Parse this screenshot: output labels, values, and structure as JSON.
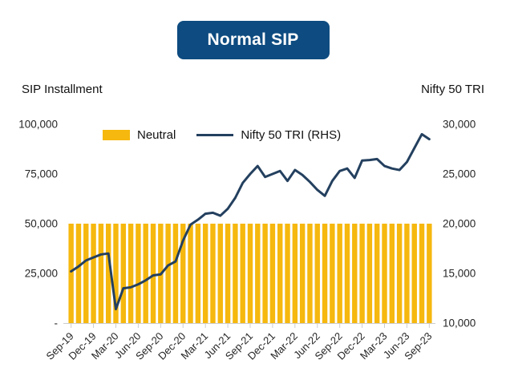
{
  "title": "Normal SIP",
  "axis_titles": {
    "left": "SIP Installment",
    "right": "Nifty 50 TRI"
  },
  "legend": [
    {
      "label": "Neutral",
      "type": "bar",
      "color": "#f6b80e"
    },
    {
      "label": "Nifty 50 TRI (RHS)",
      "type": "line",
      "color": "#24405f"
    }
  ],
  "colors": {
    "badge_bg": "#0d4b80",
    "badge_text": "#ffffff",
    "bar": "#f6b80e",
    "line": "#24405f",
    "axis_gray": "#cccccc",
    "label_text": "#262626"
  },
  "chart_data": {
    "type": "bar+line",
    "title": "Normal SIP",
    "x": [
      "Sep-19",
      "Oct-19",
      "Nov-19",
      "Dec-19",
      "Jan-20",
      "Feb-20",
      "Mar-20",
      "Apr-20",
      "May-20",
      "Jun-20",
      "Jul-20",
      "Aug-20",
      "Sep-20",
      "Oct-20",
      "Nov-20",
      "Dec-20",
      "Jan-21",
      "Feb-21",
      "Mar-21",
      "Apr-21",
      "May-21",
      "Jun-21",
      "Jul-21",
      "Aug-21",
      "Sep-21",
      "Oct-21",
      "Nov-21",
      "Dec-21",
      "Jan-22",
      "Feb-22",
      "Mar-22",
      "Apr-22",
      "May-22",
      "Jun-22",
      "Jul-22",
      "Aug-22",
      "Sep-22",
      "Oct-22",
      "Nov-22",
      "Dec-22",
      "Jan-23",
      "Feb-23",
      "Mar-23",
      "Apr-23",
      "May-23",
      "Jun-23",
      "Jul-23",
      "Aug-23",
      "Sep-23"
    ],
    "x_tick_labels": [
      "Sep-19",
      "Dec-19",
      "Mar-20",
      "Jun-20",
      "Sep-20",
      "Dec-20",
      "Mar-21",
      "Jun-21",
      "Sep-21",
      "Dec-21",
      "Mar-22",
      "Jun-22",
      "Sep-22",
      "Dec-22",
      "Mar-23",
      "Jun-23",
      "Sep-23"
    ],
    "x_tick_every": 3,
    "series": [
      {
        "name": "Neutral",
        "type": "bar",
        "axis": "left",
        "color": "#f6b80e",
        "values": [
          50000,
          50000,
          50000,
          50000,
          50000,
          50000,
          50000,
          50000,
          50000,
          50000,
          50000,
          50000,
          50000,
          50000,
          50000,
          50000,
          50000,
          50000,
          50000,
          50000,
          50000,
          50000,
          50000,
          50000,
          50000,
          50000,
          50000,
          50000,
          50000,
          50000,
          50000,
          50000,
          50000,
          50000,
          50000,
          50000,
          50000,
          50000,
          50000,
          50000,
          50000,
          50000,
          50000,
          50000,
          50000,
          50000,
          50000,
          50000,
          50000
        ]
      },
      {
        "name": "Nifty 50 TRI (RHS)",
        "type": "line",
        "axis": "right",
        "color": "#24405f",
        "values": [
          15200,
          15700,
          16300,
          16600,
          16900,
          17000,
          11400,
          13500,
          13600,
          13900,
          14300,
          14800,
          14900,
          15800,
          16200,
          18300,
          19900,
          20400,
          21000,
          21100,
          20800,
          21500,
          22600,
          24100,
          25000,
          25800,
          24700,
          25000,
          25300,
          24300,
          25400,
          24900,
          24200,
          23400,
          22800,
          24300,
          25300,
          25550,
          24600,
          26350,
          26400,
          26500,
          25800,
          25550,
          25400,
          26200,
          27600,
          29000,
          28500
        ]
      }
    ],
    "left_axis": {
      "label": "SIP Installment",
      "range": [
        0,
        100000
      ],
      "tick_labels": [
        "100,000",
        "75,000",
        "50,000",
        "25,000",
        "-"
      ],
      "tick_values": [
        100000,
        75000,
        50000,
        25000,
        0
      ]
    },
    "right_axis": {
      "label": "Nifty 50 TRI",
      "range": [
        10000,
        30000
      ],
      "tick_labels": [
        "30,000",
        "25,000",
        "20,000",
        "15,000",
        "10,000"
      ],
      "tick_values": [
        30000,
        25000,
        20000,
        15000,
        10000
      ]
    },
    "grid": false,
    "legend_position": "top-inside"
  }
}
